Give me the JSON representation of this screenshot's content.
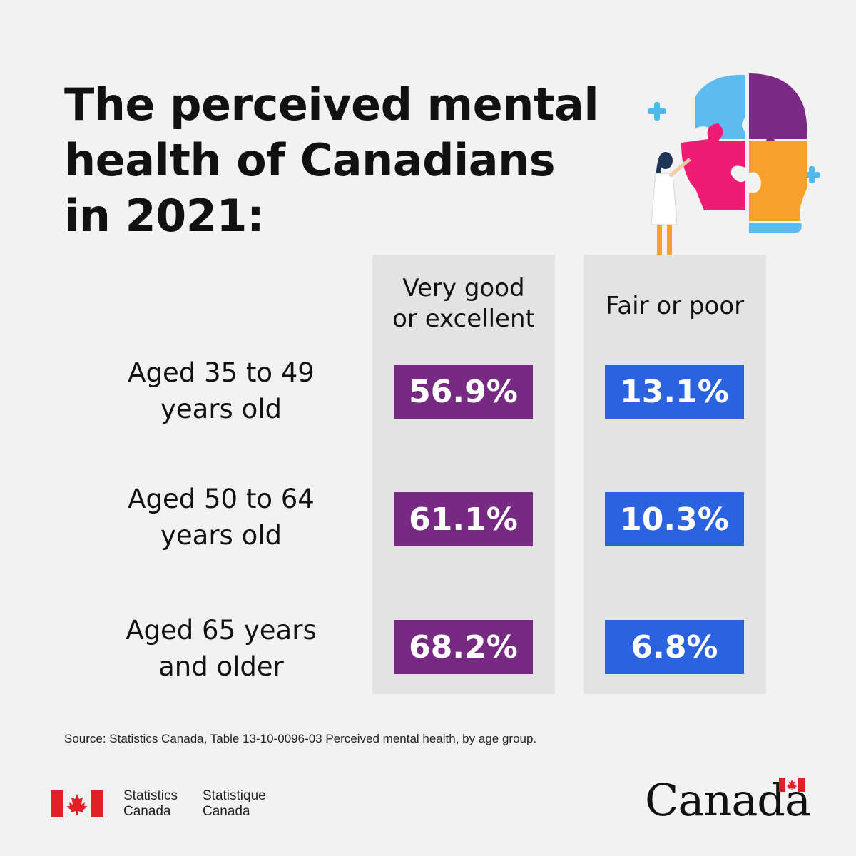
{
  "title_lines": [
    "The perceived mental",
    "health of Canadians",
    "in 2021:"
  ],
  "chart_data": {
    "type": "table",
    "columns": [
      "Very good or excellent",
      "Fair or poor"
    ],
    "rows": [
      {
        "label": "Aged 35 to 49 years old",
        "values": [
          56.9,
          13.1
        ]
      },
      {
        "label": "Aged 50 to 64 years old",
        "values": [
          61.1,
          10.3
        ]
      },
      {
        "label": "Aged 65 years and older",
        "values": [
          68.2,
          6.8
        ]
      }
    ]
  },
  "headers": {
    "col1": [
      "Very good",
      "or excellent"
    ],
    "col2": "Fair or poor"
  },
  "rows": [
    {
      "label": [
        "Aged 35 to 49",
        "years old"
      ],
      "good": "56.9%",
      "poor": "13.1%"
    },
    {
      "label": [
        "Aged 50 to 64",
        "years old"
      ],
      "good": "61.1%",
      "poor": "10.3%"
    },
    {
      "label": [
        "Aged 65 years",
        "and older"
      ],
      "good": "68.2%",
      "poor": "6.8%"
    }
  ],
  "source": "Source: Statistics Canada, Table 13-10-0096-03 Perceived mental health, by age group.",
  "footer": {
    "agency_en": [
      "Statistics",
      "Canada"
    ],
    "agency_fr": [
      "Statistique",
      "Canada"
    ],
    "wordmark": "Canada"
  },
  "colors": {
    "background": "#f2f2f2",
    "column_bg": "#e3e3e3",
    "good_box": "#762a82",
    "poor_box": "#2a62e0",
    "flag_red": "#e11f26"
  },
  "icons": [
    "maple-leaf-flag-icon",
    "puzzle-head-illustration"
  ]
}
